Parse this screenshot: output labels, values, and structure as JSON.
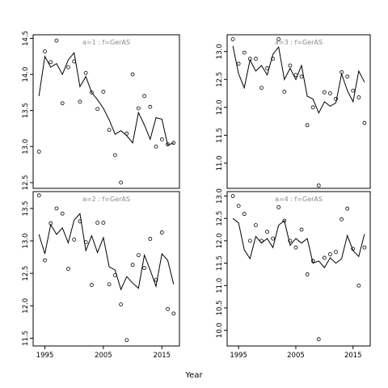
{
  "chart_data": {
    "type": "line",
    "xlabel": "Year",
    "x_ticks": [
      1995,
      2005,
      2015
    ],
    "x_range": [
      1993,
      2018
    ],
    "panels": [
      {
        "title": "a=1  :  f=GerAS",
        "ylim": [
          12.42,
          14.55
        ],
        "y_ticks": [
          "12.5",
          "13.0",
          "13.5",
          "14.0",
          "14.5"
        ],
        "fitted": {
          "x": [
            1994,
            1995,
            1996,
            1997,
            1998,
            1999,
            2000,
            2001,
            2002,
            2003,
            2004,
            2005,
            2006,
            2007,
            2008,
            2009,
            2010,
            2011,
            2012,
            2013,
            2014,
            2015,
            2016,
            2017
          ],
          "y": [
            13.7,
            14.25,
            14.1,
            14.15,
            14.0,
            14.2,
            14.3,
            13.83,
            13.97,
            13.75,
            13.65,
            13.53,
            13.37,
            13.17,
            13.22,
            13.15,
            13.05,
            13.47,
            13.3,
            13.1,
            13.4,
            13.38,
            13.02,
            13.05
          ]
        },
        "observed": {
          "x": [
            1994,
            1995,
            1996,
            1997,
            1998,
            1999,
            2000,
            2001,
            2002,
            2003,
            2004,
            2005,
            2006,
            2007,
            2008,
            2009,
            2010,
            2011,
            2012,
            2013,
            2014,
            2015,
            2016,
            2017
          ],
          "y": [
            12.93,
            14.32,
            14.17,
            14.47,
            13.6,
            14.1,
            14.18,
            13.62,
            14.02,
            13.75,
            13.52,
            13.76,
            13.23,
            12.88,
            12.5,
            13.18,
            14.0,
            13.53,
            13.7,
            13.55,
            13.0,
            13.1,
            13.03,
            13.05
          ]
        }
      },
      {
        "title": "a=3  :  f=GerAS",
        "ylim": [
          10.55,
          13.3
        ],
        "y_ticks": [
          "11.0",
          "11.5",
          "12.0",
          "12.5",
          "13.0"
        ],
        "fitted": {
          "x": [
            1994,
            1995,
            1996,
            1997,
            1998,
            1999,
            2000,
            2001,
            2002,
            2003,
            2004,
            2005,
            2006,
            2007,
            2008,
            2009,
            2010,
            2011,
            2012,
            2013,
            2014,
            2015,
            2016,
            2017
          ],
          "y": [
            13.1,
            12.6,
            12.35,
            12.85,
            12.65,
            12.75,
            12.58,
            12.95,
            13.08,
            12.5,
            12.7,
            12.5,
            12.75,
            12.2,
            12.15,
            11.9,
            12.1,
            12.02,
            12.08,
            12.6,
            12.3,
            12.1,
            12.65,
            12.45
          ]
        },
        "observed": {
          "x": [
            1994,
            1995,
            1996,
            1997,
            1998,
            1999,
            2000,
            2001,
            2002,
            2003,
            2004,
            2005,
            2006,
            2007,
            2008,
            2009,
            2010,
            2011,
            2012,
            2013,
            2014,
            2015,
            2016,
            2017
          ],
          "y": [
            13.22,
            12.78,
            12.98,
            12.87,
            12.87,
            12.35,
            12.7,
            12.87,
            13.22,
            12.28,
            12.75,
            12.58,
            12.55,
            11.68,
            12.0,
            10.6,
            12.27,
            12.25,
            12.15,
            12.63,
            12.55,
            12.3,
            12.18,
            11.72
          ]
        }
      },
      {
        "title": "a=2  :  f=GerAS",
        "ylim": [
          11.38,
          13.76
        ],
        "y_ticks": [
          "11.5",
          "12.0",
          "12.5",
          "13.0",
          "13.5"
        ],
        "fitted": {
          "x": [
            1994,
            1995,
            1996,
            1997,
            1998,
            1999,
            2000,
            2001,
            2002,
            2003,
            2004,
            2005,
            2006,
            2007,
            2008,
            2009,
            2010,
            2011,
            2012,
            2013,
            2014,
            2015,
            2016,
            2017
          ],
          "y": [
            13.1,
            12.8,
            13.25,
            13.1,
            13.2,
            12.97,
            13.32,
            13.42,
            12.85,
            13.08,
            12.82,
            13.05,
            12.6,
            12.55,
            12.25,
            12.45,
            12.35,
            12.27,
            12.78,
            12.55,
            12.3,
            12.8,
            12.7,
            12.33
          ]
        },
        "observed": {
          "x": [
            1994,
            1995,
            1996,
            1997,
            1998,
            1999,
            2000,
            2001,
            2002,
            2003,
            2004,
            2005,
            2006,
            2007,
            2008,
            2009,
            2010,
            2011,
            2012,
            2013,
            2014,
            2015,
            2016,
            2017
          ],
          "y": [
            13.7,
            12.7,
            13.27,
            13.5,
            13.42,
            12.57,
            13.02,
            13.3,
            12.98,
            12.32,
            13.28,
            13.28,
            12.33,
            12.47,
            12.02,
            11.47,
            12.63,
            12.78,
            12.58,
            13.03,
            12.4,
            13.13,
            11.95,
            11.88
          ]
        }
      },
      {
        "title": "a=4  :  f=GerAS",
        "ylim": [
          9.65,
          13.1
        ],
        "y_ticks": [
          "10.0",
          "10.5",
          "11.0",
          "11.5",
          "12.0",
          "12.5",
          "13.0"
        ],
        "fitted": {
          "x": [
            1994,
            1995,
            1996,
            1997,
            1998,
            1999,
            2000,
            2001,
            2002,
            2003,
            2004,
            2005,
            2006,
            2007,
            2008,
            2009,
            2010,
            2011,
            2012,
            2013,
            2014,
            2015,
            2016,
            2017
          ],
          "y": [
            12.5,
            12.4,
            11.8,
            11.6,
            12.1,
            11.95,
            12.05,
            11.85,
            12.35,
            12.45,
            11.9,
            12.05,
            11.95,
            12.05,
            11.5,
            11.55,
            11.4,
            11.62,
            11.5,
            11.6,
            12.12,
            11.78,
            11.65,
            12.15
          ]
        },
        "observed": {
          "x": [
            1994,
            1995,
            1996,
            1997,
            1998,
            1999,
            2000,
            2001,
            2002,
            2003,
            2004,
            2005,
            2006,
            2007,
            2008,
            2009,
            2010,
            2011,
            2012,
            2013,
            2014,
            2015,
            2016,
            2017
          ],
          "y": [
            13.0,
            12.78,
            12.6,
            12.0,
            12.35,
            12.0,
            12.2,
            12.05,
            12.75,
            12.45,
            12.0,
            11.85,
            12.25,
            11.25,
            11.55,
            9.8,
            11.62,
            11.7,
            11.75,
            12.48,
            12.72,
            11.82,
            11.0,
            11.85
          ]
        }
      }
    ]
  }
}
